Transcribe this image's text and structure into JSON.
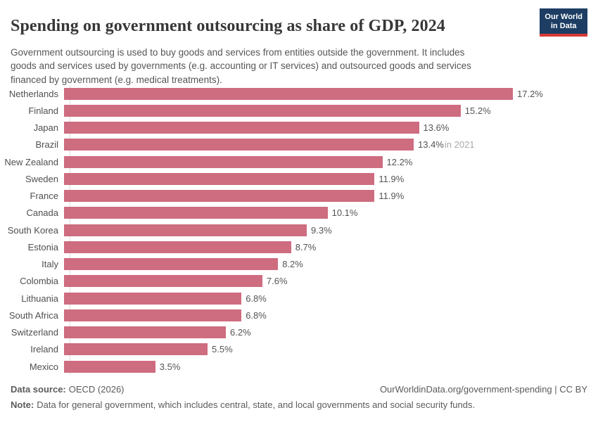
{
  "header": {
    "title": "Spending on government outsourcing as share of GDP, 2024",
    "logo": {
      "line1": "Our World",
      "line2": "in Data",
      "bg_color": "#1d3d63",
      "strip_color": "#d73a35"
    }
  },
  "subtitle": {
    "lines": [
      "Government outsourcing is used to buy goods and services from entities outside the government. It includes",
      "goods and services used by governments (e.g. accounting or IT services) and outsourced goods and services",
      "financed by government (e.g. medical treatments)."
    ]
  },
  "chart_data": {
    "type": "bar",
    "orientation": "horizontal",
    "unit": "%",
    "xmax": 17.2,
    "grid": false,
    "bar_color": "#ce6c80",
    "categories": [
      "Netherlands",
      "Finland",
      "Japan",
      "Brazil",
      "New Zealand",
      "Sweden",
      "France",
      "Canada",
      "South Korea",
      "Estonia",
      "Italy",
      "Colombia",
      "Lithuania",
      "South Africa",
      "Switzerland",
      "Ireland",
      "Mexico"
    ],
    "values": [
      17.2,
      15.2,
      13.6,
      13.4,
      12.2,
      11.9,
      11.9,
      10.1,
      9.3,
      8.7,
      8.2,
      7.6,
      6.8,
      6.8,
      6.2,
      5.5,
      3.5
    ],
    "labels": [
      "17.2%",
      "15.2%",
      "13.6%",
      "13.4%",
      "12.2%",
      "11.9%",
      "11.9%",
      "10.1%",
      "9.3%",
      "8.7%",
      "8.2%",
      "7.6%",
      "6.8%",
      "6.8%",
      "6.2%",
      "5.5%",
      "3.5%"
    ],
    "annotations": [
      {
        "category": "Brazil",
        "text": "in 2021"
      }
    ]
  },
  "footer": {
    "data_source_label": "Data source:",
    "data_source_value": "OECD (2026)",
    "url": "OurWorldinData.org/government-spending | CC BY",
    "note_label": "Note:",
    "note_text": "Data for general government, which includes central, state, and local governments and social security funds."
  }
}
